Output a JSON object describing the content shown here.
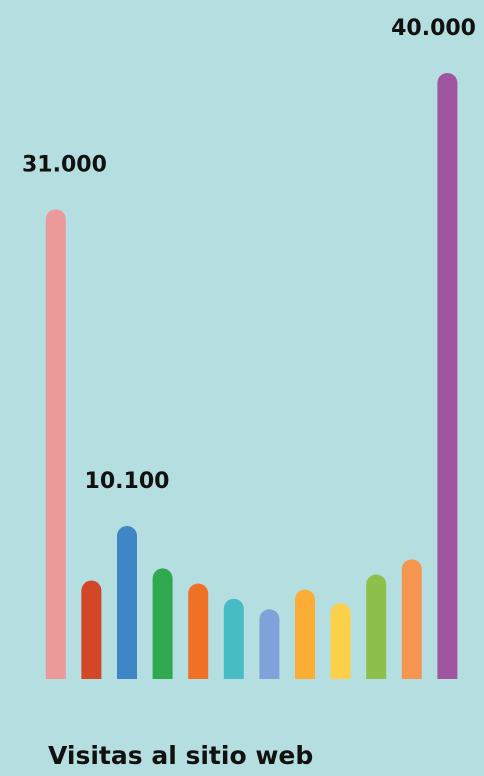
{
  "chart_data": {
    "type": "bar",
    "title": "Visitas al sitio web",
    "values": [
      31000,
      6500,
      10100,
      7300,
      6300,
      5300,
      4600,
      5900,
      5000,
      6900,
      7900,
      40000
    ],
    "value_labels": [
      "31.000",
      null,
      "10.100",
      null,
      null,
      null,
      null,
      null,
      null,
      null,
      null,
      "40.000"
    ],
    "colors": [
      "#ec999a",
      "#d24727",
      "#3f86c6",
      "#2fa850",
      "#ef7126",
      "#48bcc4",
      "#7fa2d9",
      "#fbad35",
      "#fcd049",
      "#8cc04b",
      "#f49550",
      "#a055a0"
    ]
  }
}
